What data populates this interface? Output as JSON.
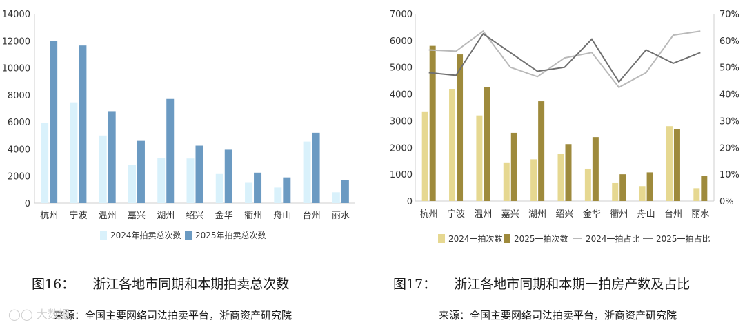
{
  "chart_data": [
    {
      "type": "bar",
      "categories": [
        "杭州",
        "宁波",
        "温州",
        "嘉兴",
        "湖州",
        "绍兴",
        "金华",
        "衢州",
        "舟山",
        "台州",
        "丽水"
      ],
      "series": [
        {
          "name": "2024年拍卖总次数",
          "values": [
            5950,
            7450,
            5000,
            2850,
            3350,
            3300,
            2150,
            1500,
            1150,
            4550,
            800
          ],
          "color": "#d9f1fb"
        },
        {
          "name": "2025年拍卖总次数",
          "values": [
            12000,
            11650,
            6800,
            4600,
            7700,
            4250,
            3950,
            2250,
            1900,
            5200,
            1700
          ],
          "color": "#6b9ac2"
        }
      ],
      "ylim": [
        0,
        14000
      ],
      "yticks": [
        "0",
        "2000",
        "4000",
        "6000",
        "8000",
        "10000",
        "12000",
        "14000"
      ],
      "legend": "bottom"
    },
    {
      "type": "bar",
      "categories": [
        "杭州",
        "宁波",
        "温州",
        "嘉兴",
        "湖州",
        "绍兴",
        "金华",
        "衢州",
        "舟山",
        "台州",
        "丽水"
      ],
      "series": [
        {
          "name": "2024一拍次数",
          "kind": "bar",
          "axis": "left",
          "values": [
            3350,
            4180,
            3200,
            1420,
            1560,
            1750,
            1210,
            670,
            560,
            2800,
            480
          ],
          "color": "#e6d891"
        },
        {
          "name": "2025一拍次数",
          "kind": "bar",
          "axis": "left",
          "values": [
            5800,
            5480,
            4250,
            2550,
            3730,
            2130,
            2390,
            1000,
            1070,
            2680,
            950
          ],
          "color": "#9e8a3c"
        },
        {
          "name": "2024一拍占比",
          "kind": "line",
          "axis": "right",
          "values": [
            0.565,
            0.56,
            0.635,
            0.5,
            0.465,
            0.535,
            0.555,
            0.425,
            0.48,
            0.62,
            0.635
          ],
          "color": "#b9b9b9"
        },
        {
          "name": "2025一拍占比",
          "kind": "line",
          "axis": "right",
          "values": [
            0.48,
            0.47,
            0.625,
            0.555,
            0.485,
            0.5,
            0.605,
            0.445,
            0.565,
            0.515,
            0.555
          ],
          "color": "#6f6f6f"
        }
      ],
      "ylim": [
        0,
        7000
      ],
      "y2lim": [
        0,
        0.7
      ],
      "yticks": [
        "0",
        "1000",
        "2000",
        "3000",
        "4000",
        "5000",
        "6000",
        "7000"
      ],
      "y2ticks": [
        "0%",
        "10%",
        "20%",
        "30%",
        "40%",
        "50%",
        "60%",
        "70%"
      ],
      "legend": "bottom"
    }
  ],
  "figures": [
    {
      "number": "图16：",
      "title": "浙江各地市同期和本期拍卖总次数",
      "source": "来源：全国主要网络司法拍卖平台，浙商资产研究院"
    },
    {
      "number": "图17：",
      "title": "浙江各地市同期和本期一拍房产数及占比",
      "source": "来源：全国主要网络司法拍卖平台，浙商资产研究院"
    }
  ],
  "watermark": "大数据"
}
